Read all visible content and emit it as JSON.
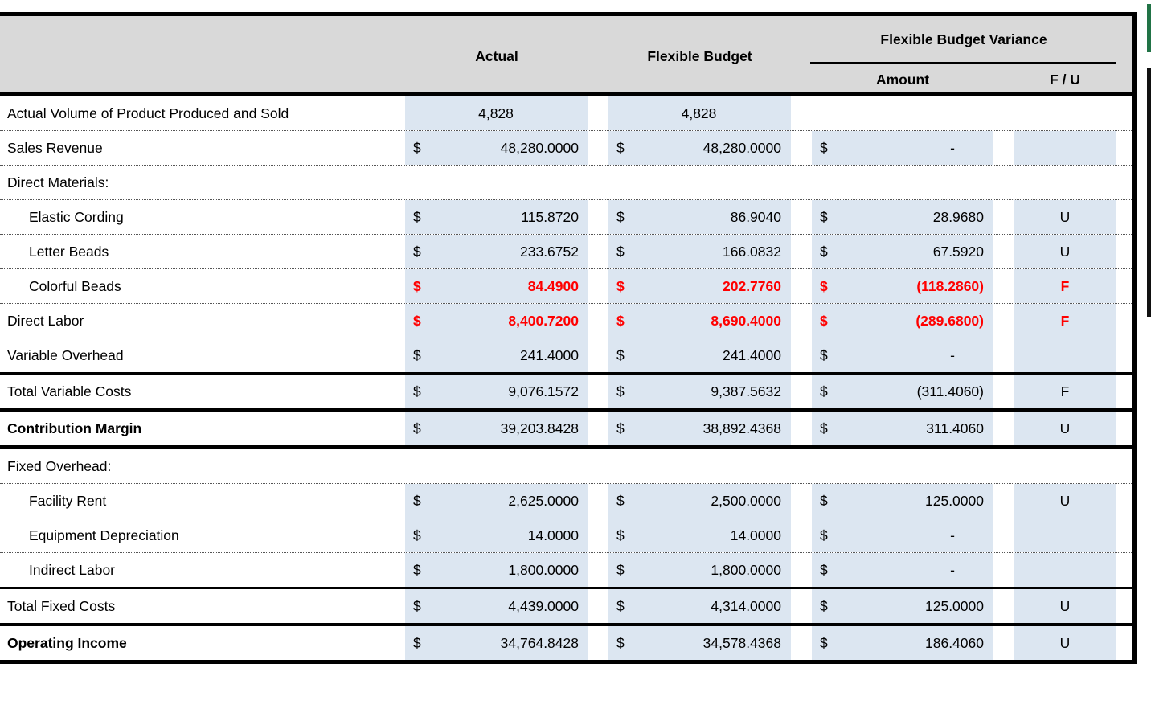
{
  "currency_symbol": "$",
  "header": {
    "col_actual": "Actual",
    "col_flexible": "Flexible Budget",
    "col_variance_group": "Flexible Budget Variance",
    "col_amount": "Amount",
    "col_fu": "F / U"
  },
  "colors": {
    "header_bg": "#d9d9d9",
    "cell_fill_blue": "#dce6f1",
    "unfavorable_favorable_red": "#ff0000",
    "window_edge_green": "#217346",
    "window_edge_black": "#111111"
  },
  "rows": [
    {
      "label": "Actual Volume of Product Produced and Sold",
      "type": "volume",
      "indent": false,
      "bold": false,
      "red": false,
      "fill": "vol",
      "border": "dotted",
      "actual": "4,828",
      "flexible": "4,828",
      "variance": null,
      "fu": null
    },
    {
      "label": "Sales Revenue",
      "type": "money",
      "indent": false,
      "bold": false,
      "red": false,
      "fill": "all",
      "border": "dotted",
      "actual": "48,280.0000",
      "flexible": "48,280.0000",
      "variance": "-",
      "fu": ""
    },
    {
      "label": "Direct Materials:",
      "type": "section",
      "indent": false,
      "bold": false,
      "red": false,
      "fill": "none",
      "border": "dotted",
      "actual": null,
      "flexible": null,
      "variance": null,
      "fu": null
    },
    {
      "label": "Elastic Cording",
      "type": "money",
      "indent": true,
      "bold": false,
      "red": false,
      "fill": "all",
      "border": "dotted",
      "actual": "115.8720",
      "flexible": "86.9040",
      "variance": "28.9680",
      "fu": "U"
    },
    {
      "label": "Letter Beads",
      "type": "money",
      "indent": true,
      "bold": false,
      "red": false,
      "fill": "all",
      "border": "dotted",
      "actual": "233.6752",
      "flexible": "166.0832",
      "variance": "67.5920",
      "fu": "U"
    },
    {
      "label": "Colorful Beads",
      "type": "money",
      "indent": true,
      "bold": false,
      "red": true,
      "fill": "all",
      "border": "dotted",
      "actual": "84.4900",
      "flexible": "202.7760",
      "variance": "(118.2860)",
      "fu": "F"
    },
    {
      "label": "Direct Labor",
      "type": "money",
      "indent": false,
      "bold": false,
      "red": true,
      "fill": "all",
      "border": "dotted",
      "actual": "8,400.7200",
      "flexible": "8,690.4000",
      "variance": "(289.6800)",
      "fu": "F"
    },
    {
      "label": "Variable Overhead",
      "type": "money",
      "indent": false,
      "bold": false,
      "red": false,
      "fill": "all",
      "border": "solid",
      "actual": "241.4000",
      "flexible": "241.4000",
      "variance": "-",
      "fu": ""
    },
    {
      "label": "Total Variable Costs",
      "type": "money",
      "indent": false,
      "bold": false,
      "red": false,
      "fill": "all",
      "border": "thick",
      "actual": "9,076.1572",
      "flexible": "9,387.5632",
      "variance": "(311.4060)",
      "fu": "F"
    },
    {
      "label": "Contribution Margin",
      "type": "money",
      "indent": false,
      "bold": true,
      "red": false,
      "fill": "all",
      "border": "xthick",
      "actual": "39,203.8428",
      "flexible": "38,892.4368",
      "variance": "311.4060",
      "fu": "U"
    },
    {
      "label": "Fixed Overhead:",
      "type": "section",
      "indent": false,
      "bold": false,
      "red": false,
      "fill": "none",
      "border": "dotted",
      "actual": null,
      "flexible": null,
      "variance": null,
      "fu": null
    },
    {
      "label": "Facility Rent",
      "type": "money",
      "indent": true,
      "bold": false,
      "red": false,
      "fill": "all",
      "border": "dotted",
      "actual": "2,625.0000",
      "flexible": "2,500.0000",
      "variance": "125.0000",
      "fu": "U"
    },
    {
      "label": "Equipment Depreciation",
      "type": "money",
      "indent": true,
      "bold": false,
      "red": false,
      "fill": "all",
      "border": "dotted",
      "actual": "14.0000",
      "flexible": "14.0000",
      "variance": "-",
      "fu": ""
    },
    {
      "label": "Indirect Labor",
      "type": "money",
      "indent": true,
      "bold": false,
      "red": false,
      "fill": "all",
      "border": "solid",
      "actual": "1,800.0000",
      "flexible": "1,800.0000",
      "variance": "-",
      "fu": ""
    },
    {
      "label": "Total Fixed Costs",
      "type": "money",
      "indent": false,
      "bold": false,
      "red": false,
      "fill": "all",
      "border": "thick",
      "actual": "4,439.0000",
      "flexible": "4,314.0000",
      "variance": "125.0000",
      "fu": "U"
    },
    {
      "label": "Operating Income",
      "type": "money",
      "indent": false,
      "bold": true,
      "red": false,
      "fill": "all",
      "border": "xthick",
      "actual": "34,764.8428",
      "flexible": "34,578.4368",
      "variance": "186.4060",
      "fu": "U"
    }
  ]
}
